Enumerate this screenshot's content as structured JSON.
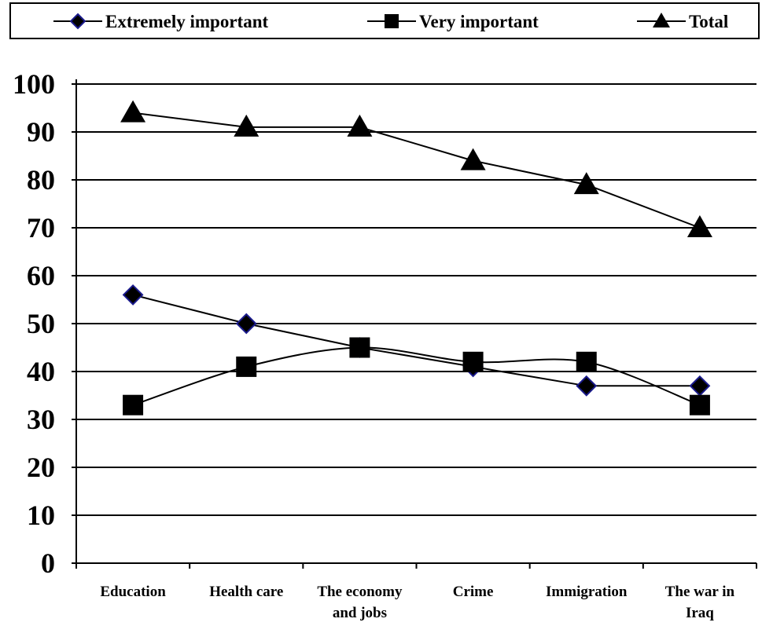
{
  "chart_data": {
    "type": "line",
    "categories": [
      [
        "Education"
      ],
      [
        "Health care"
      ],
      [
        "The economy",
        "and jobs"
      ],
      [
        "Crime"
      ],
      [
        "Immigration"
      ],
      [
        "The war in",
        "Iraq"
      ]
    ],
    "series": [
      {
        "name": "Extremely important",
        "marker": "diamond",
        "values": [
          56,
          50,
          45,
          41,
          37,
          37
        ]
      },
      {
        "name": "Very important",
        "marker": "square",
        "values": [
          33,
          41,
          45,
          42,
          42,
          33
        ]
      },
      {
        "name": "Total",
        "marker": "triangle",
        "values": [
          94,
          91,
          91,
          84,
          79,
          70
        ]
      }
    ],
    "ylim": [
      0,
      100
    ],
    "yticks": [
      0,
      10,
      20,
      30,
      40,
      50,
      60,
      70,
      80,
      90,
      100
    ],
    "grid": true,
    "legend_position": "top",
    "colors": {
      "line": "#000000",
      "diamond_fill": "#000000",
      "diamond_stroke": "#1a1a8c"
    }
  }
}
